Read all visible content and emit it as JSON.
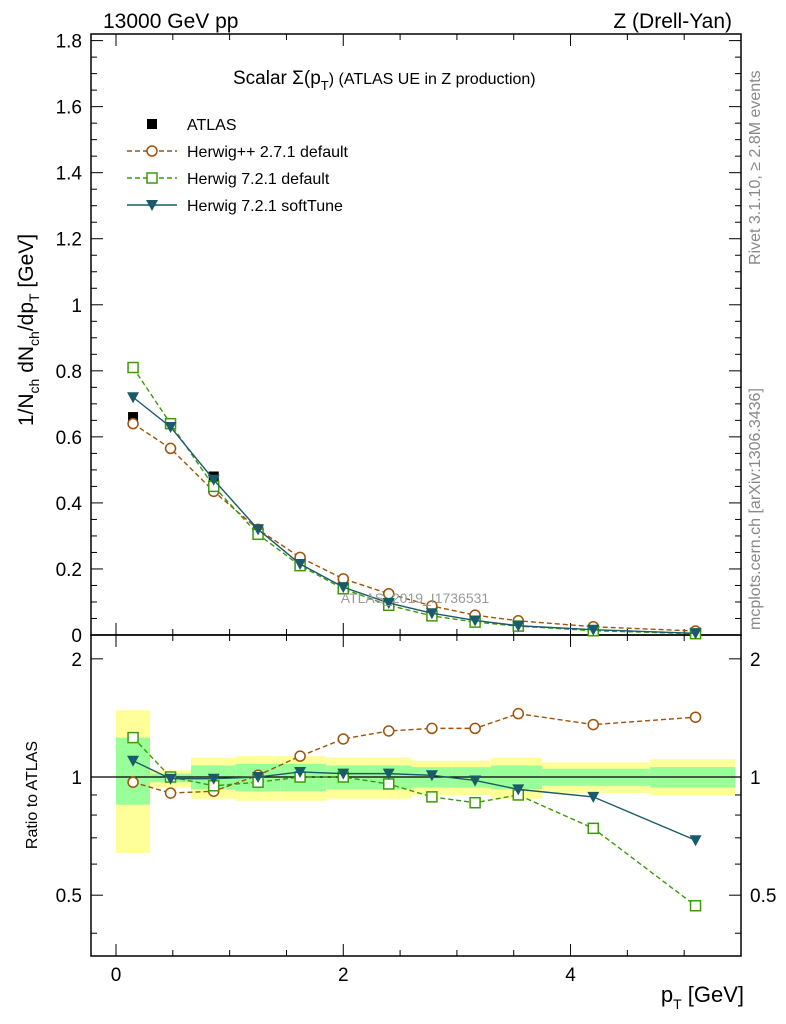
{
  "header": {
    "left": "13000 GeV pp",
    "right": "Z (Drell-Yan)",
    "plot_title": "Scalar Σ(p",
    "plot_title_sub": "T",
    "plot_title_tail": ") (ATLAS UE in Z production)",
    "watermark": "ATLAS_2019_I1736531"
  },
  "side_labels": {
    "rivet": "Rivet 3.1.10, ≥ 2.8M events",
    "mcplots": "mcplots.cern.ch [arXiv:1306.3436]"
  },
  "axes": {
    "x_label": "p",
    "x_label_sub": "T",
    "x_label_unit": " [GeV]",
    "y_label_main": "1/N",
    "y_label_main_sub1": "ch",
    "y_label_main_mid": " dN",
    "y_label_main_sub2": "ch",
    "y_label_main_mid2": "/dp",
    "y_label_main_sub3": "T",
    "y_label_main_unit": " [GeV]",
    "y_label_ratio": "Ratio to ATLAS"
  },
  "chart_data": [
    {
      "type": "line",
      "panel": "main",
      "x": [
        0.15,
        0.48,
        0.86,
        1.25,
        1.62,
        2.0,
        2.4,
        2.78,
        3.16,
        3.54,
        4.2,
        5.1
      ],
      "xlim": [
        -0.22,
        5.5
      ],
      "ylim": [
        0,
        1.82
      ],
      "x_ticks": [
        "0",
        "2",
        "4"
      ],
      "y_ticks": [
        "0",
        "0.2",
        "0.4",
        "0.6",
        "0.8",
        "1",
        "1.2",
        "1.4",
        "1.6",
        "1.8"
      ],
      "legend_position": "top-left",
      "series": [
        {
          "name": "ATLAS",
          "color": "#000000",
          "marker": "square-filled",
          "values": [
            0.66,
            0.64,
            0.48,
            0.32,
            0.21,
            0.14,
            0.095,
            0.065,
            0.045,
            0.03,
            0.018,
            0.008
          ]
        },
        {
          "name": "Herwig++ 2.7.1 default",
          "color": "#a0520a",
          "marker": "circle-open",
          "dashed": true,
          "values": [
            0.64,
            0.565,
            0.435,
            0.32,
            0.235,
            0.17,
            0.125,
            0.088,
            0.06,
            0.043,
            0.025,
            0.012
          ]
        },
        {
          "name": "Herwig 7.2.1 default",
          "color": "#3c9a0a",
          "marker": "square-open",
          "dashed": true,
          "values": [
            0.81,
            0.64,
            0.45,
            0.305,
            0.21,
            0.14,
            0.09,
            0.058,
            0.039,
            0.027,
            0.013,
            0.004
          ]
        },
        {
          "name": "Herwig 7.2.1 softTune",
          "color": "#1a5a6a",
          "marker": "triangle-down-filled",
          "values": [
            0.72,
            0.63,
            0.47,
            0.32,
            0.215,
            0.145,
            0.097,
            0.066,
            0.044,
            0.028,
            0.016,
            0.005
          ]
        }
      ]
    },
    {
      "type": "line",
      "panel": "ratio",
      "x": [
        0.15,
        0.48,
        0.86,
        1.25,
        1.62,
        2.0,
        2.4,
        2.78,
        3.16,
        3.54,
        4.2,
        5.1
      ],
      "xlim": [
        -0.22,
        5.5
      ],
      "ylim": [
        0.35,
        2.3
      ],
      "x_ticks": [
        "0",
        "2",
        "4"
      ],
      "y_ticks": [
        "0.5",
        "1",
        "2"
      ],
      "uncertainty_bins": [
        {
          "x": [
            0.0,
            0.3
          ],
          "inner": [
            0.85,
            1.26
          ],
          "outer": [
            0.64,
            1.48
          ]
        },
        {
          "x": [
            0.3,
            0.66
          ],
          "inner": [
            0.97,
            1.02
          ],
          "outer": [
            0.94,
            1.04
          ]
        },
        {
          "x": [
            0.66,
            1.05
          ],
          "inner": [
            0.93,
            1.07
          ],
          "outer": [
            0.88,
            1.12
          ]
        },
        {
          "x": [
            1.05,
            1.45
          ],
          "inner": [
            0.92,
            1.08
          ],
          "outer": [
            0.87,
            1.13
          ]
        },
        {
          "x": [
            1.45,
            1.85
          ],
          "inner": [
            0.92,
            1.08
          ],
          "outer": [
            0.87,
            1.13
          ]
        },
        {
          "x": [
            1.85,
            2.6
          ],
          "inner": [
            0.93,
            1.07
          ],
          "outer": [
            0.88,
            1.12
          ]
        },
        {
          "x": [
            2.6,
            2.95
          ],
          "inner": [
            0.94,
            1.06
          ],
          "outer": [
            0.9,
            1.1
          ]
        },
        {
          "x": [
            2.95,
            3.3
          ],
          "inner": [
            0.94,
            1.06
          ],
          "outer": [
            0.9,
            1.1
          ]
        },
        {
          "x": [
            3.3,
            3.75
          ],
          "inner": [
            0.93,
            1.07
          ],
          "outer": [
            0.88,
            1.12
          ]
        },
        {
          "x": [
            3.75,
            4.7
          ],
          "inner": [
            0.95,
            1.05
          ],
          "outer": [
            0.91,
            1.09
          ]
        },
        {
          "x": [
            4.7,
            5.45
          ],
          "inner": [
            0.94,
            1.06
          ],
          "outer": [
            0.9,
            1.11
          ]
        }
      ],
      "series": [
        {
          "name": "Herwig++ 2.7.1 default",
          "color": "#a0520a",
          "marker": "circle-open",
          "dashed": true,
          "values": [
            0.97,
            0.91,
            0.92,
            1.01,
            1.13,
            1.25,
            1.31,
            1.33,
            1.33,
            1.45,
            1.36,
            1.42
          ]
        },
        {
          "name": "Herwig 7.2.1 default",
          "color": "#3c9a0a",
          "marker": "square-open",
          "dashed": true,
          "values": [
            1.26,
            1.0,
            0.95,
            0.97,
            1.0,
            1.0,
            0.96,
            0.89,
            0.86,
            0.9,
            0.74,
            0.47
          ]
        },
        {
          "name": "Herwig 7.2.1 softTune",
          "color": "#1a5a6a",
          "marker": "triangle-down-filled",
          "values": [
            1.1,
            0.99,
            0.99,
            1.0,
            1.03,
            1.02,
            1.02,
            1.01,
            0.98,
            0.93,
            0.89,
            0.69
          ]
        }
      ]
    }
  ]
}
